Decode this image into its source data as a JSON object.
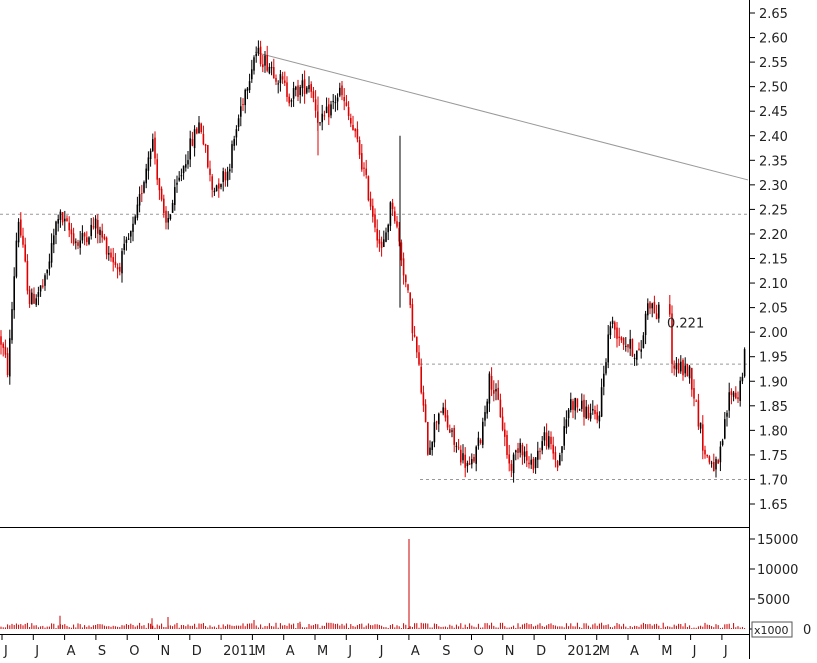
{
  "chart_data": {
    "type": "candlestick",
    "colors": {
      "up_candle": "#000000",
      "down_candle": "#dd0000",
      "volume": "#cc0000",
      "trendline": "#999999",
      "dotted": "#999999",
      "axis": "#000000"
    },
    "price_axis": {
      "ylim": [
        1.6,
        2.67
      ],
      "ticks": [
        "2.65",
        "2.60",
        "2.55",
        "2.50",
        "2.45",
        "2.40",
        "2.35",
        "2.30",
        "2.25",
        "2.20",
        "2.15",
        "2.10",
        "2.05",
        "2.00",
        "1.95",
        "1.90",
        "1.85",
        "1.80",
        "1.75",
        "1.70",
        "1.65"
      ]
    },
    "volume_axis": {
      "ylim": [
        0,
        16000
      ],
      "ticks": [
        "15000",
        "10000",
        "5000",
        "0"
      ],
      "multiplier_label": "x1000"
    },
    "x_axis": {
      "labels": [
        "J",
        "J",
        "A",
        "S",
        "O",
        "N",
        "D",
        "2011",
        "M",
        "A",
        "M",
        "J",
        "J",
        "A",
        "S",
        "O",
        "N",
        "D",
        "2012",
        "M",
        "A",
        "M",
        "J",
        "J"
      ]
    },
    "annotation": {
      "text": "0.221",
      "price": 2.02
    },
    "trendline": {
      "from_price": 2.57,
      "to_price": 2.31
    },
    "horizontal_levels": [
      2.24,
      1.935,
      1.7
    ],
    "price_path": [
      [
        0,
        1.99
      ],
      [
        8,
        1.92
      ],
      [
        18,
        2.24
      ],
      [
        30,
        2.06
      ],
      [
        45,
        2.1
      ],
      [
        58,
        2.24
      ],
      [
        78,
        2.18
      ],
      [
        95,
        2.22
      ],
      [
        118,
        2.13
      ],
      [
        135,
        2.22
      ],
      [
        152,
        2.4
      ],
      [
        165,
        2.21
      ],
      [
        185,
        2.35
      ],
      [
        200,
        2.43
      ],
      [
        212,
        2.29
      ],
      [
        228,
        2.33
      ],
      [
        242,
        2.47
      ],
      [
        255,
        2.57
      ],
      [
        272,
        2.54
      ],
      [
        290,
        2.48
      ],
      [
        310,
        2.51
      ],
      [
        320,
        2.42
      ],
      [
        340,
        2.49
      ],
      [
        358,
        2.38
      ],
      [
        372,
        2.25
      ],
      [
        382,
        2.16
      ],
      [
        392,
        2.27
      ],
      [
        405,
        2.11
      ],
      [
        418,
        1.94
      ],
      [
        428,
        1.76
      ],
      [
        440,
        1.85
      ],
      [
        455,
        1.77
      ],
      [
        470,
        1.72
      ],
      [
        480,
        1.78
      ],
      [
        490,
        1.91
      ],
      [
        500,
        1.84
      ],
      [
        510,
        1.72
      ],
      [
        520,
        1.78
      ],
      [
        530,
        1.72
      ],
      [
        545,
        1.79
      ],
      [
        558,
        1.73
      ],
      [
        570,
        1.86
      ],
      [
        585,
        1.84
      ],
      [
        598,
        1.82
      ],
      [
        610,
        2.02
      ],
      [
        625,
        1.98
      ],
      [
        640,
        1.95
      ],
      [
        648,
        2.07
      ],
      [
        658,
        2.03
      ],
      [
        668,
        2.15
      ],
      [
        672,
        1.93
      ],
      [
        690,
        1.92
      ],
      [
        705,
        1.75
      ],
      [
        718,
        1.72
      ],
      [
        730,
        1.88
      ],
      [
        738,
        1.87
      ],
      [
        748,
        1.99
      ]
    ]
  }
}
